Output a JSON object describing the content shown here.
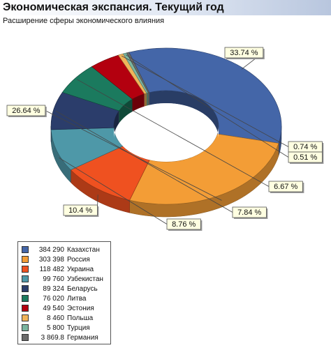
{
  "title": "Экономическая экспансия. Текущий год",
  "subtitle": "Расширение сферы экономического влияния",
  "chart_data": {
    "type": "pie",
    "variant": "3d-donut",
    "unit": "%",
    "series": [
      {
        "name": "Казахстан",
        "value": 384290,
        "value_label": "384 290",
        "percent_label": "33.74 %",
        "color": "#4466a8"
      },
      {
        "name": "Россия",
        "value": 303398,
        "value_label": "303 398",
        "percent_label": "26.64 %",
        "color": "#f39d36"
      },
      {
        "name": "Украина",
        "value": 118482,
        "value_label": "118 482",
        "percent_label": "10.4 %",
        "color": "#ef5120"
      },
      {
        "name": "Узбекистан",
        "value": 99760,
        "value_label": "99 760",
        "percent_label": "8.76 %",
        "color": "#4e98a8"
      },
      {
        "name": "Беларусь",
        "value": 89324,
        "value_label": "89 324",
        "percent_label": "7.84 %",
        "color": "#2b3d6b"
      },
      {
        "name": "Литва",
        "value": 76020,
        "value_label": "76 020",
        "percent_label": "6.67 %",
        "color": "#1b7a5e"
      },
      {
        "name": "Эстония",
        "value": 49540,
        "value_label": "49 540",
        "percent_label": "",
        "color": "#b3000f"
      },
      {
        "name": "Польша",
        "value": 8460,
        "value_label": "8 460",
        "percent_label": "0.74 %",
        "color": "#f0b45a"
      },
      {
        "name": "Турция",
        "value": 5800,
        "value_label": "5 800",
        "percent_label": "0.51 %",
        "color": "#7ab5a0"
      },
      {
        "name": "Германия",
        "value": 3869.8,
        "value_label": "3 869.8",
        "percent_label": "",
        "color": "#6b6b6b"
      }
    ],
    "legend": "bottom-left"
  }
}
